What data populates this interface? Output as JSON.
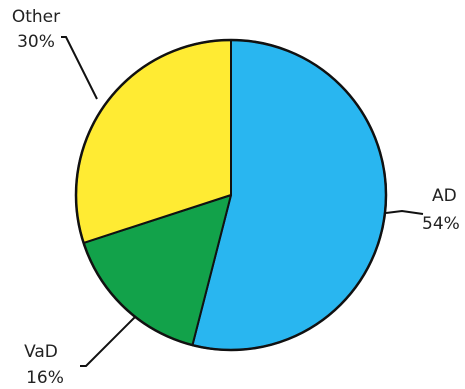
{
  "chart_data": {
    "type": "pie",
    "start_angle_deg": 0,
    "direction": "clockwise",
    "slices": [
      {
        "label": "AD",
        "value": 54,
        "percent_text": "54%",
        "color": "#29b6f0"
      },
      {
        "label": "VaD",
        "value": 16,
        "percent_text": "16%",
        "color": "#12a24a"
      },
      {
        "label": "Other",
        "value": 30,
        "percent_text": "30%",
        "color": "#ffeb33"
      }
    ]
  }
}
